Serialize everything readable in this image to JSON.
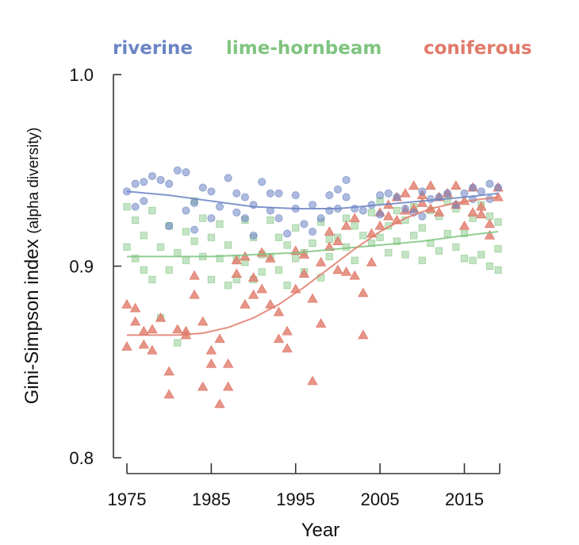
{
  "chart_data": {
    "type": "scatter",
    "title": "",
    "xlabel": "Year",
    "ylabel": "Gini-Simpson index",
    "ylabel_suffix": "(alpha diversity)",
    "xlim": [
      1975,
      2019
    ],
    "ylim": [
      0.8,
      1.0
    ],
    "x_ticks": [
      1975,
      1985,
      1995,
      2005,
      2015
    ],
    "x_tick_labels": [
      "1975",
      "1985",
      "1995",
      "2005",
      "2015"
    ],
    "y_ticks": [
      0.8,
      0.9,
      1.0
    ],
    "y_tick_labels": [
      "0.8",
      "0.9",
      "1.0"
    ],
    "grid": false,
    "legend_position": "top",
    "series": [
      {
        "name": "riverine",
        "marker": "circle",
        "color": "#6b84c4",
        "points": [
          [
            1975,
            0.939
          ],
          [
            1976,
            0.931
          ],
          [
            1976,
            0.943
          ],
          [
            1977,
            0.944
          ],
          [
            1977,
            0.934
          ],
          [
            1978,
            0.947
          ],
          [
            1979,
            0.945
          ],
          [
            1980,
            0.943
          ],
          [
            1980,
            0.921
          ],
          [
            1981,
            0.95
          ],
          [
            1982,
            0.949
          ],
          [
            1982,
            0.929
          ],
          [
            1983,
            0.933
          ],
          [
            1983,
            0.919
          ],
          [
            1984,
            0.941
          ],
          [
            1985,
            0.939
          ],
          [
            1985,
            0.925
          ],
          [
            1986,
            0.931
          ],
          [
            1987,
            0.946
          ],
          [
            1988,
            0.938
          ],
          [
            1988,
            0.928
          ],
          [
            1989,
            0.936
          ],
          [
            1989,
            0.925
          ],
          [
            1990,
            0.932
          ],
          [
            1990,
            0.916
          ],
          [
            1991,
            0.944
          ],
          [
            1992,
            0.938
          ],
          [
            1992,
            0.929
          ],
          [
            1993,
            0.938
          ],
          [
            1993,
            0.925
          ],
          [
            1994,
            0.917
          ],
          [
            1995,
            0.937
          ],
          [
            1995,
            0.93
          ],
          [
            1996,
            0.922
          ],
          [
            1997,
            0.932
          ],
          [
            1997,
            0.918
          ],
          [
            1998,
            0.925
          ],
          [
            1999,
            0.929
          ],
          [
            1999,
            0.937
          ],
          [
            2000,
            0.93
          ],
          [
            2000,
            0.94
          ],
          [
            2001,
            0.945
          ],
          [
            2001,
            0.936
          ],
          [
            2002,
            0.93
          ],
          [
            2003,
            0.929
          ],
          [
            2004,
            0.932
          ],
          [
            2005,
            0.937
          ],
          [
            2005,
            0.927
          ],
          [
            2006,
            0.938
          ],
          [
            2007,
            0.936
          ],
          [
            2008,
            0.93
          ],
          [
            2009,
            0.928
          ],
          [
            2010,
            0.939
          ],
          [
            2010,
            0.926
          ],
          [
            2011,
            0.935
          ],
          [
            2012,
            0.936
          ],
          [
            2013,
            0.938
          ],
          [
            2014,
            0.932
          ],
          [
            2015,
            0.938
          ],
          [
            2016,
            0.941
          ],
          [
            2016,
            0.935
          ],
          [
            2017,
            0.939
          ],
          [
            2018,
            0.943
          ],
          [
            2018,
            0.935
          ],
          [
            2019,
            0.941
          ]
        ],
        "trend": [
          [
            1975,
            0.939
          ],
          [
            1980,
            0.937
          ],
          [
            1985,
            0.934
          ],
          [
            1990,
            0.931
          ],
          [
            1995,
            0.93
          ],
          [
            2000,
            0.93
          ],
          [
            2005,
            0.932
          ],
          [
            2010,
            0.934
          ],
          [
            2015,
            0.936
          ],
          [
            2019,
            0.938
          ]
        ]
      },
      {
        "name": "lime-hornbeam",
        "marker": "square",
        "color": "#7fc47f",
        "points": [
          [
            1975,
            0.931
          ],
          [
            1975,
            0.91
          ],
          [
            1976,
            0.924
          ],
          [
            1976,
            0.904
          ],
          [
            1977,
            0.916
          ],
          [
            1977,
            0.898
          ],
          [
            1978,
            0.929
          ],
          [
            1978,
            0.893
          ],
          [
            1979,
            0.91
          ],
          [
            1979,
            0.873
          ],
          [
            1980,
            0.921
          ],
          [
            1980,
            0.898
          ],
          [
            1981,
            0.907
          ],
          [
            1981,
            0.86
          ],
          [
            1982,
            0.918
          ],
          [
            1982,
            0.903
          ],
          [
            1983,
            0.934
          ],
          [
            1983,
            0.913
          ],
          [
            1984,
            0.925
          ],
          [
            1984,
            0.905
          ],
          [
            1985,
            0.915
          ],
          [
            1985,
            0.893
          ],
          [
            1986,
            0.922
          ],
          [
            1986,
            0.904
          ],
          [
            1987,
            0.911
          ],
          [
            1987,
            0.89
          ],
          [
            1988,
            0.904
          ],
          [
            1988,
            0.893
          ],
          [
            1989,
            0.924
          ],
          [
            1989,
            0.902
          ],
          [
            1990,
            0.915
          ],
          [
            1990,
            0.893
          ],
          [
            1991,
            0.906
          ],
          [
            1991,
            0.897
          ],
          [
            1992,
            0.924
          ],
          [
            1992,
            0.905
          ],
          [
            1993,
            0.915
          ],
          [
            1993,
            0.898
          ],
          [
            1994,
            0.911
          ],
          [
            1994,
            0.89
          ],
          [
            1995,
            0.92
          ],
          [
            1995,
            0.904
          ],
          [
            1996,
            0.907
          ],
          [
            1996,
            0.897
          ],
          [
            1997,
            0.912
          ],
          [
            1998,
            0.923
          ],
          [
            1998,
            0.894
          ],
          [
            1999,
            0.914
          ],
          [
            1999,
            0.905
          ],
          [
            2000,
            0.915
          ],
          [
            2001,
            0.925
          ],
          [
            2001,
            0.91
          ],
          [
            2002,
            0.921
          ],
          [
            2002,
            0.903
          ],
          [
            2003,
            0.916
          ],
          [
            2004,
            0.928
          ],
          [
            2004,
            0.912
          ],
          [
            2005,
            0.934
          ],
          [
            2005,
            0.915
          ],
          [
            2006,
            0.921
          ],
          [
            2006,
            0.907
          ],
          [
            2007,
            0.929
          ],
          [
            2007,
            0.913
          ],
          [
            2008,
            0.924
          ],
          [
            2008,
            0.906
          ],
          [
            2009,
            0.931
          ],
          [
            2009,
            0.916
          ],
          [
            2010,
            0.92
          ],
          [
            2010,
            0.903
          ],
          [
            2011,
            0.929
          ],
          [
            2011,
            0.912
          ],
          [
            2012,
            0.926
          ],
          [
            2012,
            0.908
          ],
          [
            2013,
            0.934
          ],
          [
            2013,
            0.917
          ],
          [
            2014,
            0.93
          ],
          [
            2014,
            0.91
          ],
          [
            2015,
            0.917
          ],
          [
            2015,
            0.904
          ],
          [
            2016,
            0.925
          ],
          [
            2016,
            0.903
          ],
          [
            2017,
            0.932
          ],
          [
            2017,
            0.906
          ],
          [
            2018,
            0.926
          ],
          [
            2018,
            0.9
          ],
          [
            2019,
            0.923
          ],
          [
            2019,
            0.909
          ],
          [
            2019,
            0.898
          ]
        ],
        "trend": [
          [
            1975,
            0.905
          ],
          [
            1980,
            0.905
          ],
          [
            1985,
            0.905
          ],
          [
            1990,
            0.906
          ],
          [
            1995,
            0.907
          ],
          [
            2000,
            0.909
          ],
          [
            2005,
            0.911
          ],
          [
            2010,
            0.913
          ],
          [
            2015,
            0.916
          ],
          [
            2019,
            0.918
          ]
        ]
      },
      {
        "name": "coniferous",
        "marker": "triangle",
        "color": "#e07a6a",
        "points": [
          [
            1975,
            0.88
          ],
          [
            1975,
            0.858
          ],
          [
            1976,
            0.878
          ],
          [
            1976,
            0.871
          ],
          [
            1977,
            0.859
          ],
          [
            1977,
            0.866
          ],
          [
            1978,
            0.856
          ],
          [
            1978,
            0.867
          ],
          [
            1979,
            0.873
          ],
          [
            1980,
            0.845
          ],
          [
            1980,
            0.833
          ],
          [
            1981,
            0.867
          ],
          [
            1982,
            0.866
          ],
          [
            1982,
            0.864
          ],
          [
            1983,
            0.885
          ],
          [
            1983,
            0.895
          ],
          [
            1984,
            0.871
          ],
          [
            1984,
            0.837
          ],
          [
            1985,
            0.849
          ],
          [
            1985,
            0.856
          ],
          [
            1986,
            0.862
          ],
          [
            1986,
            0.828
          ],
          [
            1987,
            0.849
          ],
          [
            1987,
            0.837
          ],
          [
            1988,
            0.903
          ],
          [
            1988,
            0.896
          ],
          [
            1989,
            0.88
          ],
          [
            1989,
            0.905
          ],
          [
            1990,
            0.885
          ],
          [
            1990,
            0.894
          ],
          [
            1991,
            0.888
          ],
          [
            1991,
            0.907
          ],
          [
            1992,
            0.88
          ],
          [
            1992,
            0.904
          ],
          [
            1993,
            0.876
          ],
          [
            1993,
            0.862
          ],
          [
            1994,
            0.866
          ],
          [
            1994,
            0.857
          ],
          [
            1995,
            0.888
          ],
          [
            1995,
            0.908
          ],
          [
            1996,
            0.906
          ],
          [
            1996,
            0.896
          ],
          [
            1997,
            0.883
          ],
          [
            1997,
            0.84
          ],
          [
            1998,
            0.87
          ],
          [
            1998,
            0.902
          ],
          [
            1999,
            0.918
          ],
          [
            1999,
            0.91
          ],
          [
            2000,
            0.898
          ],
          [
            2000,
            0.913
          ],
          [
            2001,
            0.921
          ],
          [
            2001,
            0.897
          ],
          [
            2002,
            0.895
          ],
          [
            2002,
            0.925
          ],
          [
            2003,
            0.886
          ],
          [
            2003,
            0.864
          ],
          [
            2004,
            0.902
          ],
          [
            2004,
            0.917
          ],
          [
            2005,
            0.928
          ],
          [
            2005,
            0.921
          ],
          [
            2006,
            0.932
          ],
          [
            2006,
            0.926
          ],
          [
            2007,
            0.936
          ],
          [
            2007,
            0.924
          ],
          [
            2008,
            0.938
          ],
          [
            2008,
            0.929
          ],
          [
            2009,
            0.942
          ],
          [
            2009,
            0.93
          ],
          [
            2010,
            0.937
          ],
          [
            2010,
            0.933
          ],
          [
            2011,
            0.942
          ],
          [
            2011,
            0.93
          ],
          [
            2012,
            0.936
          ],
          [
            2012,
            0.928
          ],
          [
            2013,
            0.938
          ],
          [
            2014,
            0.942
          ],
          [
            2014,
            0.932
          ],
          [
            2015,
            0.934
          ],
          [
            2015,
            0.921
          ],
          [
            2016,
            0.941
          ],
          [
            2016,
            0.928
          ],
          [
            2017,
            0.931
          ],
          [
            2017,
            0.927
          ],
          [
            2018,
            0.916
          ],
          [
            2018,
            0.922
          ],
          [
            2019,
            0.941
          ],
          [
            2019,
            0.936
          ]
        ],
        "trend": [
          [
            1975,
            0.864
          ],
          [
            1978,
            0.864
          ],
          [
            1981,
            0.864
          ],
          [
            1984,
            0.865
          ],
          [
            1987,
            0.868
          ],
          [
            1990,
            0.873
          ],
          [
            1993,
            0.88
          ],
          [
            1996,
            0.889
          ],
          [
            1999,
            0.899
          ],
          [
            2002,
            0.909
          ],
          [
            2005,
            0.918
          ],
          [
            2008,
            0.925
          ],
          [
            2011,
            0.93
          ],
          [
            2014,
            0.933
          ],
          [
            2017,
            0.935
          ],
          [
            2019,
            0.936
          ]
        ]
      }
    ]
  }
}
